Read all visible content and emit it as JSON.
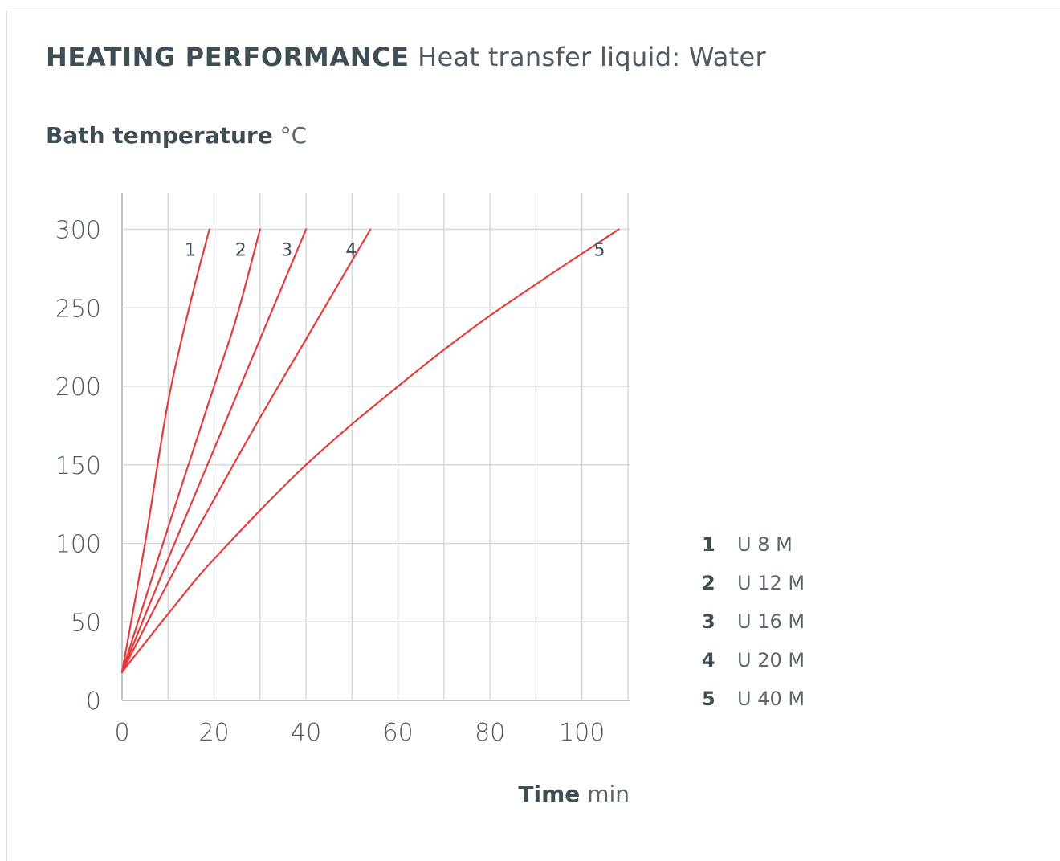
{
  "header": {
    "title": "HEATING PERFORMANCE",
    "subtitle": "Heat transfer liquid: Water"
  },
  "chart_data": {
    "type": "line",
    "title": "HEATING PERFORMANCE",
    "subtitle": "Heat transfer liquid: Water",
    "ylabel": "Bath temperature",
    "yunit": "°C",
    "xlabel": "Time",
    "xunit": "min",
    "xlim": [
      0,
      110
    ],
    "ylim": [
      0,
      300
    ],
    "xticks": [
      0,
      20,
      40,
      60,
      80,
      100
    ],
    "yticks": [
      0,
      50,
      100,
      150,
      200,
      250,
      300
    ],
    "grid": true,
    "legend_position": "right",
    "series": [
      {
        "label": "1",
        "name": "U 8 M",
        "points": [
          [
            0,
            18
          ],
          [
            5,
            100
          ],
          [
            10,
            190
          ],
          [
            15,
            255
          ],
          [
            19,
            300
          ]
        ],
        "color": "#e53b3b"
      },
      {
        "label": "2",
        "name": "U 12 M",
        "points": [
          [
            0,
            18
          ],
          [
            10,
            110
          ],
          [
            20,
            200
          ],
          [
            25,
            245
          ],
          [
            30,
            300
          ]
        ],
        "color": "#e53b3b"
      },
      {
        "label": "3",
        "name": "U 16 M",
        "points": [
          [
            0,
            18
          ],
          [
            10,
            90
          ],
          [
            20,
            160
          ],
          [
            30,
            230
          ],
          [
            40,
            300
          ]
        ],
        "color": "#e53b3b"
      },
      {
        "label": "4",
        "name": "U 20 M",
        "points": [
          [
            0,
            18
          ],
          [
            10,
            75
          ],
          [
            20,
            128
          ],
          [
            30,
            180
          ],
          [
            40,
            230
          ],
          [
            54,
            300
          ]
        ],
        "color": "#e53b3b"
      },
      {
        "label": "5",
        "name": "U 40 M",
        "points": [
          [
            0,
            18
          ],
          [
            10,
            55
          ],
          [
            20,
            90
          ],
          [
            40,
            150
          ],
          [
            60,
            200
          ],
          [
            80,
            245
          ],
          [
            108,
            300
          ]
        ],
        "color": "#e53b3b"
      }
    ]
  }
}
